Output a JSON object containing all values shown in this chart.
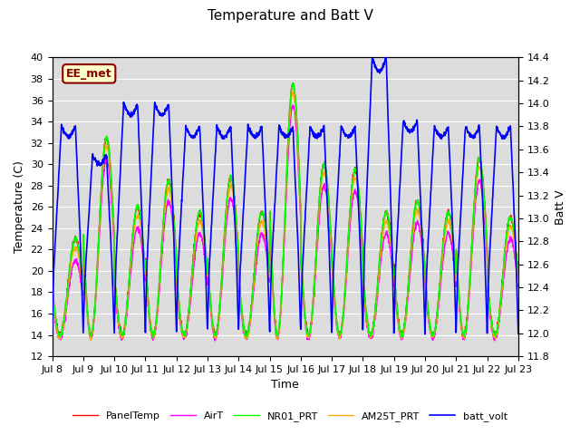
{
  "title": "Temperature and Batt V",
  "xlabel": "Time",
  "ylabel_left": "Temperature (C)",
  "ylabel_right": "Batt V",
  "annotation": "EE_met",
  "n_days": 15,
  "ylim_left": [
    12,
    40
  ],
  "ylim_right": [
    11.8,
    14.4
  ],
  "x_ticks_labels": [
    "Jul 8",
    "Jul 9",
    "Jul 10",
    "Jul 11",
    "Jul 12",
    "Jul 13",
    "Jul 14",
    "Jul 15",
    "Jul 16",
    "Jul 17",
    "Jul 18",
    "Jul 19",
    "Jul 20",
    "Jul 21",
    "Jul 22",
    "Jul 23"
  ],
  "plot_bg_color": "#dcdcdc",
  "fig_bg_color": "#ffffff",
  "legend_entries": [
    "PanelTemp",
    "AirT",
    "NR01_PRT",
    "AM25T_PRT",
    "batt_volt"
  ],
  "line_colors": [
    "#ff0000",
    "#ff00ff",
    "#00ff00",
    "#ffaa00",
    "#0000ff"
  ],
  "line_widths": [
    1.0,
    1.0,
    1.0,
    1.0,
    1.2
  ],
  "temp_base": 14.0,
  "temp_day_peaks": [
    23.0,
    32.5,
    26.0,
    28.5,
    25.5,
    28.8,
    25.5,
    37.5,
    30.0,
    29.5,
    25.5,
    26.5,
    25.5,
    30.5,
    25.0
  ],
  "batt_spike_heights": [
    13.8,
    13.55,
    14.0,
    14.0,
    13.8,
    13.8,
    13.8,
    13.8,
    13.8,
    13.8,
    14.4,
    13.85,
    13.8,
    13.8,
    13.8
  ],
  "batt_base": 12.0
}
